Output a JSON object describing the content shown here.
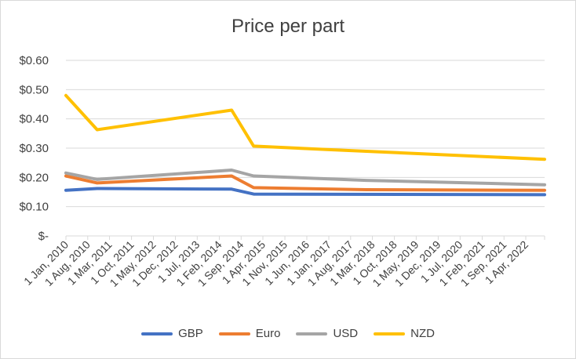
{
  "chart_data": {
    "type": "line",
    "title": "Price per part",
    "xlabel": "",
    "ylabel": "",
    "categories": [
      "1 Jan, 2010",
      "1 Aug, 2010",
      "1 Mar, 2011",
      "1 Oct, 2011",
      "1 May, 2012",
      "1 Dec, 2012",
      "1 Jul, 2013",
      "1 Feb, 2014",
      "1 Sep, 2014",
      "1 Apr, 2015",
      "1 Nov, 2015",
      "1 Jun, 2016",
      "1 Jan, 2017",
      "1 Aug, 2017",
      "1 Mar, 2018",
      "1 Oct, 2018",
      "1 May, 2019",
      "1 Dec, 2019",
      "1 Jul, 2020",
      "1 Feb, 2021",
      "1 Sep, 2021",
      "1 Apr, 2022"
    ],
    "x": [
      "2010-01-01",
      "2010-08-01",
      "2011-03-01",
      "2011-10-01",
      "2012-05-01",
      "2012-12-01",
      "2013-07-01",
      "2014-02-01",
      "2014-09-01",
      "2015-04-01",
      "2015-11-01",
      "2016-06-01",
      "2017-01-01",
      "2017-08-01",
      "2018-03-01",
      "2018-10-01",
      "2019-05-01",
      "2019-12-01",
      "2020-07-01",
      "2021-02-01",
      "2021-09-01",
      "2022-04-01"
    ],
    "x_end": "2022-10-01",
    "ylim": [
      0,
      0.6
    ],
    "yticks": [
      0,
      0.1,
      0.2,
      0.3,
      0.4,
      0.5,
      0.6
    ],
    "ytick_labels": [
      "$-",
      "$0.10",
      "$0.20",
      "$0.30",
      "$0.40",
      "$0.50",
      "$0.60"
    ],
    "grid": true,
    "legend": "bottom",
    "series": [
      {
        "name": "GBP",
        "color": "#4472C4",
        "points": [
          [
            "2010-01-01",
            0.156
          ],
          [
            "2010-11-01",
            0.162
          ],
          [
            "2014-06-01",
            0.16
          ],
          [
            "2015-01-01",
            0.143
          ],
          [
            "2022-10-01",
            0.141
          ]
        ]
      },
      {
        "name": "Euro",
        "color": "#ED7D31",
        "points": [
          [
            "2010-01-01",
            0.205
          ],
          [
            "2010-11-01",
            0.181
          ],
          [
            "2014-06-01",
            0.205
          ],
          [
            "2015-01-01",
            0.165
          ],
          [
            "2018-01-01",
            0.158
          ],
          [
            "2022-10-01",
            0.156
          ]
        ]
      },
      {
        "name": "USD",
        "color": "#A5A5A5",
        "points": [
          [
            "2010-01-01",
            0.215
          ],
          [
            "2010-11-01",
            0.193
          ],
          [
            "2014-06-01",
            0.225
          ],
          [
            "2015-01-01",
            0.205
          ],
          [
            "2018-01-01",
            0.19
          ],
          [
            "2022-10-01",
            0.175
          ]
        ]
      },
      {
        "name": "NZD",
        "color": "#FFC000",
        "points": [
          [
            "2010-01-01",
            0.48
          ],
          [
            "2010-11-01",
            0.363
          ],
          [
            "2014-06-01",
            0.43
          ],
          [
            "2015-01-01",
            0.307
          ],
          [
            "2017-01-01",
            0.295
          ],
          [
            "2022-10-01",
            0.262
          ]
        ]
      }
    ]
  }
}
